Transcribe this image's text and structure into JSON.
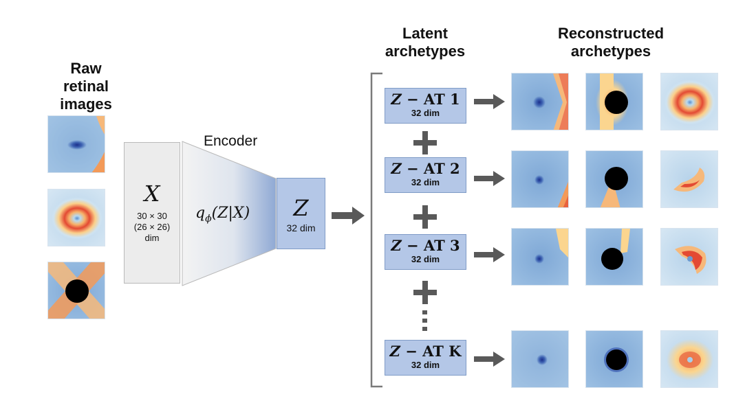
{
  "headings": {
    "raw": [
      "Raw",
      "retinal images"
    ],
    "latent": [
      "Latent",
      "archetypes"
    ],
    "reconstructed": [
      "Reconstructed",
      "archetypes"
    ],
    "encoder": "Encoder"
  },
  "input_box": {
    "symbol": "X",
    "size_a": "30 × 30",
    "size_b": "(26 × 26)",
    "unit": "dim"
  },
  "encoder_label": "q",
  "encoder_sub": "ϕ",
  "encoder_expr": "(Z|X)",
  "latent_box": {
    "symbol": "Z",
    "dim": "32 dim"
  },
  "archetypes": [
    {
      "prefix": "Z",
      "label": " − AT 1",
      "dim": "32 dim"
    },
    {
      "prefix": "Z",
      "label": " − AT 2",
      "dim": "32 dim"
    },
    {
      "prefix": "Z",
      "label": " − AT 3",
      "dim": "32 dim"
    },
    {
      "prefix": "Z",
      "label": " − AT K",
      "dim": "32 dim"
    }
  ],
  "colors": {
    "arrow": "#595959",
    "box_blue": "#b4c7e7",
    "box_grey": "#ececec",
    "bracket": "#7a7a7a"
  }
}
